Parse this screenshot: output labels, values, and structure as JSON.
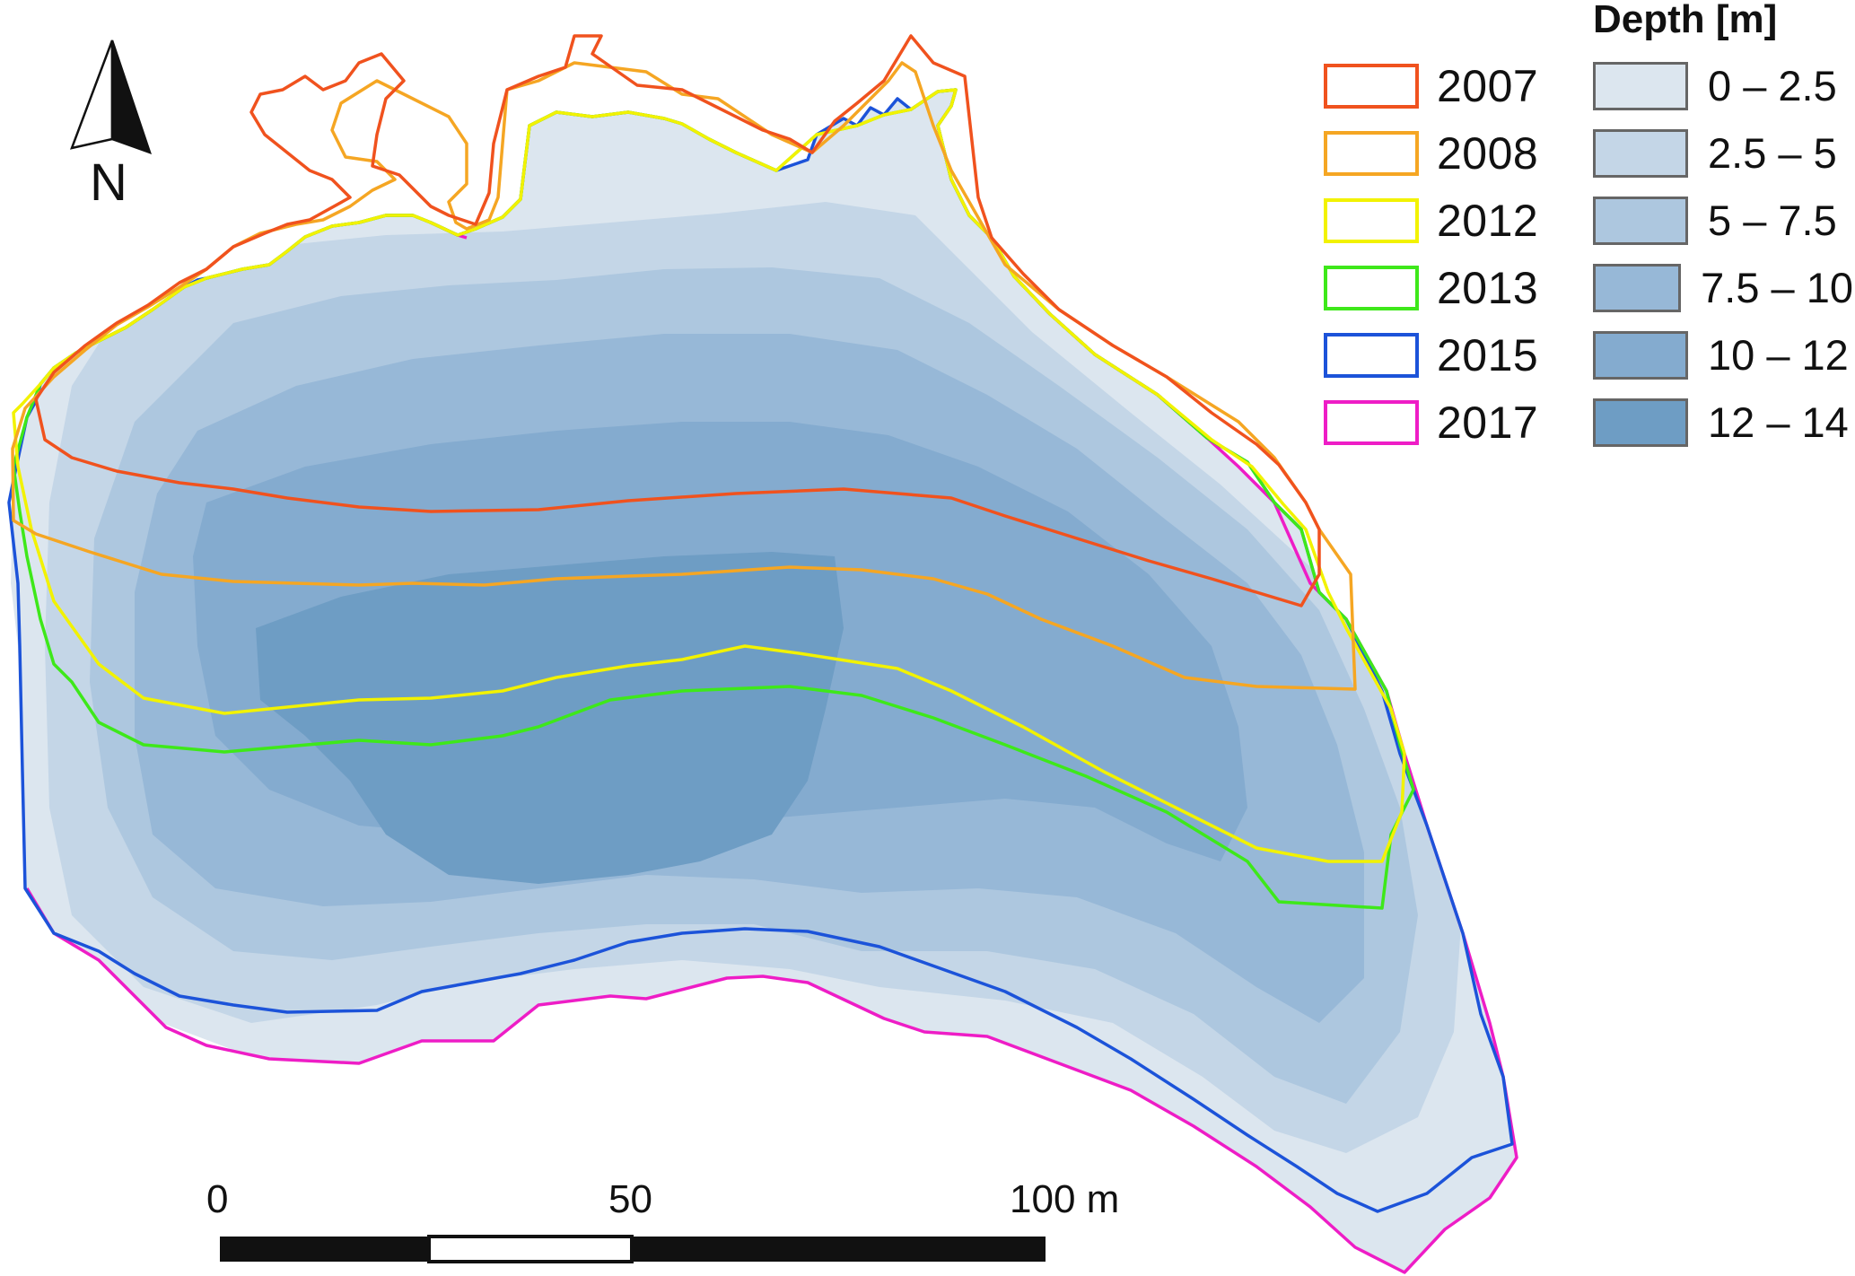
{
  "north_arrow": {
    "label": "N",
    "icon": "north-arrow-icon"
  },
  "year_legend": {
    "items": [
      {
        "label": "2007",
        "color": "#f0521e"
      },
      {
        "label": "2008",
        "color": "#f5a623"
      },
      {
        "label": "2012",
        "color": "#f2f200"
      },
      {
        "label": "2013",
        "color": "#3ee81a"
      },
      {
        "label": "2015",
        "color": "#1c53d9"
      },
      {
        "label": "2017",
        "color": "#ee1dc6"
      }
    ]
  },
  "depth_legend": {
    "title": "Depth [m]",
    "items": [
      {
        "label": "0 – 2.5",
        "color": "#dce6ef"
      },
      {
        "label": "2.5 – 5",
        "color": "#c4d6e7"
      },
      {
        "label": "5 – 7.5",
        "color": "#adc7df"
      },
      {
        "label": "7.5 – 10",
        "color": "#97b8d7"
      },
      {
        "label": "10 – 12",
        "color": "#84abcf"
      },
      {
        "label": "12 – 14",
        "color": "#6e9dc4"
      }
    ]
  },
  "scale_bar": {
    "labels": [
      "0",
      "50",
      "100 m"
    ]
  }
}
